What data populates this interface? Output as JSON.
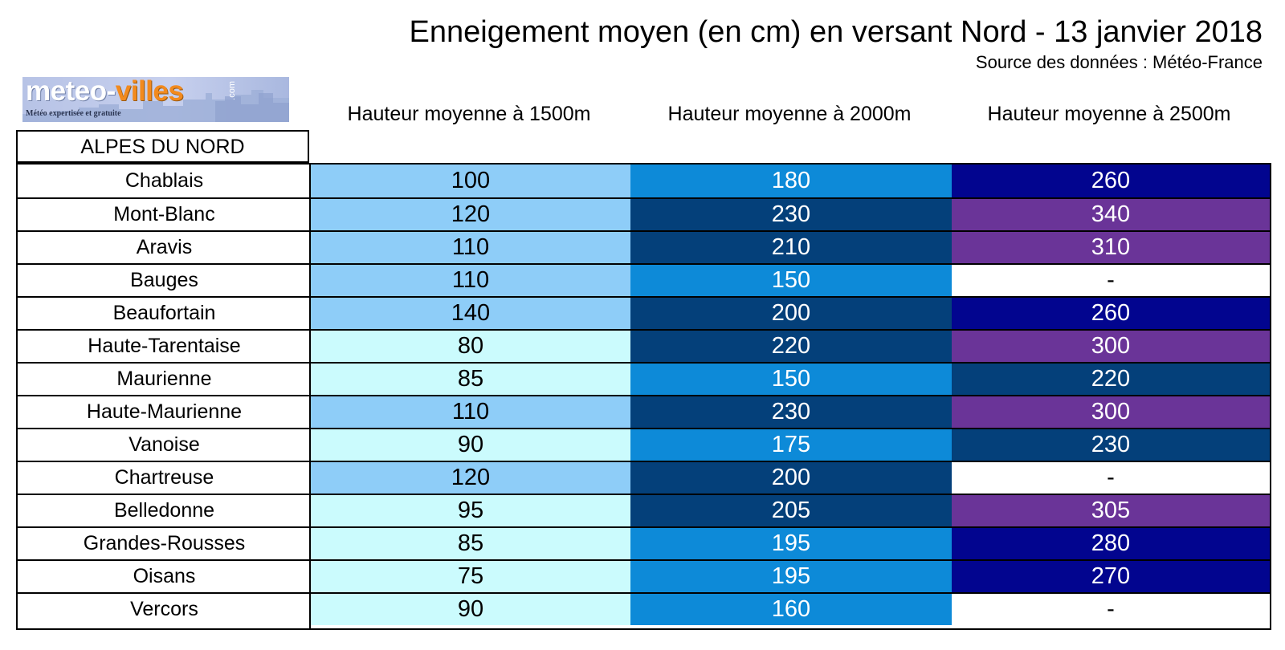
{
  "title": "Enneigement moyen (en cm) en versant Nord - 13 janvier 2018",
  "source": "Source des données : Météo-France",
  "logo": {
    "name_part1": "meteo-",
    "name_part2": "villes",
    "com": ".com",
    "tagline": "Météo expertisée et gratuite"
  },
  "region": "ALPES DU NORD",
  "colors": {
    "light_cyan": "#cbfbfd",
    "light_blue": "#8ecdf8",
    "mid_blue": "#0d8ad8",
    "dark_blue": "#04407a",
    "navy": "#02058f",
    "purple": "#6a3498",
    "white": "#ffffff"
  },
  "chart_data": {
    "type": "table",
    "title": "Enneigement moyen (en cm) en versant Nord - 13 janvier 2018",
    "subtitle": "Source des données : Météo-France",
    "row_header": "ALPES DU NORD",
    "columns": [
      "Hauteur moyenne à 1500m",
      "Hauteur moyenne à 2000m",
      "Hauteur moyenne à 2500m"
    ],
    "rows": [
      {
        "name": "Chablais",
        "values": [
          "100",
          "180",
          "260"
        ],
        "colors": [
          "light_blue",
          "mid_blue",
          "navy"
        ]
      },
      {
        "name": "Mont-Blanc",
        "values": [
          "120",
          "230",
          "340"
        ],
        "colors": [
          "light_blue",
          "dark_blue",
          "purple"
        ]
      },
      {
        "name": "Aravis",
        "values": [
          "110",
          "210",
          "310"
        ],
        "colors": [
          "light_blue",
          "dark_blue",
          "purple"
        ]
      },
      {
        "name": "Bauges",
        "values": [
          "110",
          "150",
          "-"
        ],
        "colors": [
          "light_blue",
          "mid_blue",
          "white"
        ]
      },
      {
        "name": "Beaufortain",
        "values": [
          "140",
          "200",
          "260"
        ],
        "colors": [
          "light_blue",
          "dark_blue",
          "navy"
        ]
      },
      {
        "name": "Haute-Tarentaise",
        "values": [
          "80",
          "220",
          "300"
        ],
        "colors": [
          "light_cyan",
          "dark_blue",
          "purple"
        ]
      },
      {
        "name": "Maurienne",
        "values": [
          "85",
          "150",
          "220"
        ],
        "colors": [
          "light_cyan",
          "mid_blue",
          "dark_blue"
        ]
      },
      {
        "name": "Haute-Maurienne",
        "values": [
          "110",
          "230",
          "300"
        ],
        "colors": [
          "light_blue",
          "dark_blue",
          "purple"
        ]
      },
      {
        "name": "Vanoise",
        "values": [
          "90",
          "175",
          "230"
        ],
        "colors": [
          "light_cyan",
          "mid_blue",
          "dark_blue"
        ]
      },
      {
        "name": "Chartreuse",
        "values": [
          "120",
          "200",
          "-"
        ],
        "colors": [
          "light_blue",
          "dark_blue",
          "white"
        ]
      },
      {
        "name": "Belledonne",
        "values": [
          "95",
          "205",
          "305"
        ],
        "colors": [
          "light_cyan",
          "dark_blue",
          "purple"
        ]
      },
      {
        "name": "Grandes-Rousses",
        "values": [
          "85",
          "195",
          "280"
        ],
        "colors": [
          "light_cyan",
          "mid_blue",
          "navy"
        ]
      },
      {
        "name": "Oisans",
        "values": [
          "75",
          "195",
          "270"
        ],
        "colors": [
          "light_cyan",
          "mid_blue",
          "navy"
        ]
      },
      {
        "name": "Vercors",
        "values": [
          "90",
          "160",
          "-"
        ],
        "colors": [
          "light_cyan",
          "mid_blue",
          "white"
        ]
      }
    ]
  }
}
